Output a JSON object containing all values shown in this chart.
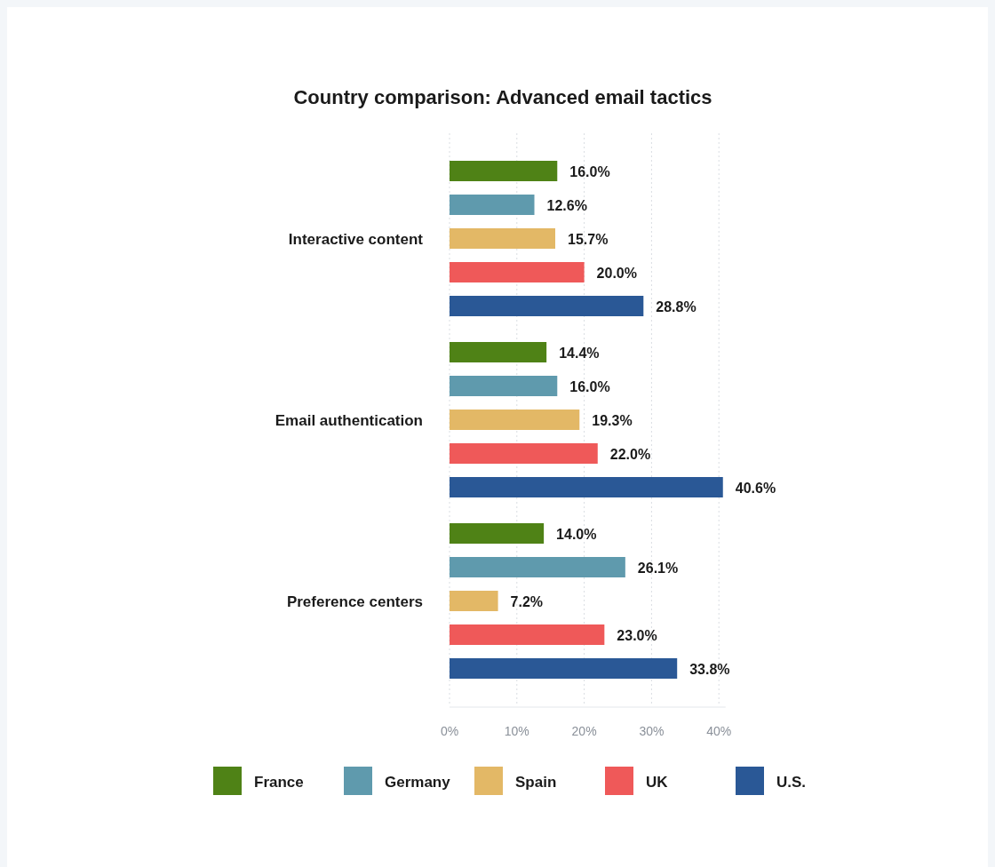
{
  "chart_data": {
    "type": "bar",
    "orientation": "horizontal",
    "title": "Country comparison: Advanced email tactics",
    "categories": [
      "Interactive content",
      "Email authentication",
      "Preference centers"
    ],
    "series": [
      {
        "name": "France",
        "color": "#4f8216",
        "values": [
          16.0,
          14.4,
          14.0
        ],
        "value_labels": [
          "16.0%",
          "14.4%",
          "14.0%"
        ]
      },
      {
        "name": "Germany",
        "color": "#5f9aad",
        "values": [
          12.6,
          16.0,
          26.1
        ],
        "value_labels": [
          "12.6%",
          "16.0%",
          "26.1%"
        ]
      },
      {
        "name": "Spain",
        "color": "#e3b866",
        "values": [
          15.7,
          19.3,
          7.2
        ],
        "value_labels": [
          "15.7%",
          "19.3%",
          "7.2%"
        ]
      },
      {
        "name": "UK",
        "color": "#ef5959",
        "values": [
          20.0,
          22.0,
          23.0
        ],
        "value_labels": [
          "20.0%",
          "22.0%",
          "23.0%"
        ]
      },
      {
        "name": "U.S.",
        "color": "#2a5896",
        "values": [
          28.8,
          40.6,
          33.8
        ],
        "value_labels": [
          "28.8%",
          "40.6%",
          "33.8%"
        ]
      }
    ],
    "xlim": [
      0,
      41
    ],
    "xticks": [
      {
        "value": 0,
        "label": "0%"
      },
      {
        "value": 10,
        "label": "10%"
      },
      {
        "value": 20,
        "label": "20%"
      },
      {
        "value": 30,
        "label": "30%"
      },
      {
        "value": 40,
        "label": "40%"
      }
    ],
    "grid": "x",
    "legend": "bottom"
  }
}
